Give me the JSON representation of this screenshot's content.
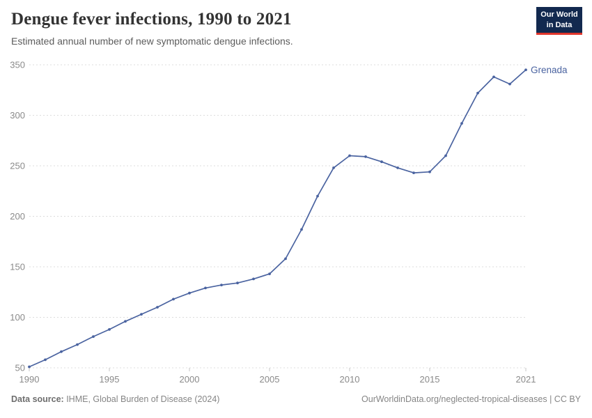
{
  "header": {
    "title": "Dengue fever infections, 1990 to 2021",
    "subtitle": "Estimated annual number of new symptomatic dengue infections."
  },
  "logo": {
    "line1": "Our World",
    "line2": "in Data",
    "bg_color": "#12294f",
    "accent_color": "#e0352c",
    "text_color": "#ffffff"
  },
  "chart_data": {
    "type": "line",
    "title": "Dengue fever infections, 1990 to 2021",
    "x": [
      1990,
      1991,
      1992,
      1993,
      1994,
      1995,
      1996,
      1997,
      1998,
      1999,
      2000,
      2001,
      2002,
      2003,
      2004,
      2005,
      2006,
      2007,
      2008,
      2009,
      2010,
      2011,
      2012,
      2013,
      2014,
      2015,
      2016,
      2017,
      2018,
      2019,
      2020,
      2021
    ],
    "series": [
      {
        "name": "Grenada",
        "color": "#4a63a0",
        "values": [
          51,
          58,
          66,
          73,
          81,
          88,
          96,
          103,
          110,
          118,
          124,
          129,
          132,
          134,
          138,
          143,
          158,
          187,
          220,
          248,
          260,
          259,
          254,
          248,
          243,
          244,
          260,
          292,
          322,
          338,
          331,
          345
        ]
      }
    ],
    "xticks": [
      1990,
      1995,
      2000,
      2005,
      2010,
      2015,
      2021
    ],
    "yticks": [
      50,
      100,
      150,
      200,
      250,
      300,
      350
    ],
    "xlim": [
      1990,
      2021
    ],
    "ylim": [
      50,
      350
    ],
    "grid": "horizontal-dashed",
    "legend_position": "end-of-line"
  },
  "footer": {
    "source_label": "Data source:",
    "source_text": " IHME, Global Burden of Disease (2024)",
    "link_text": "OurWorldinData.org/neglected-tropical-diseases",
    "separator": " | ",
    "license": "CC BY"
  },
  "colors": {
    "line": "#4a63a0",
    "grid": "#dcdcdc",
    "tick_mark": "#c4c4c4",
    "tick_label": "#8a8a8a",
    "title": "#333333",
    "subtitle": "#5c5c5c",
    "footer": "#858585"
  }
}
